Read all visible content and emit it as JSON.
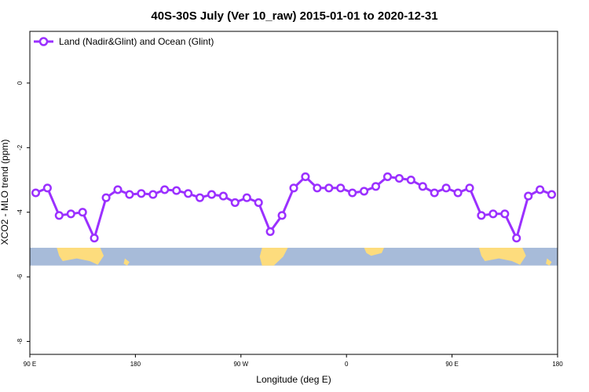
{
  "chart_data": {
    "type": "line",
    "title": "40S-30S July (Ver 10_raw)   2015-01-01 to 2020-12-31",
    "xlabel": "Longitude (deg E)",
    "ylabel": "XCO2 - MLO trend (ppm)",
    "xlim": [
      90,
      540
    ],
    "ylim": [
      -8.4,
      1.6
    ],
    "x_ticks": [
      {
        "value": 90,
        "label": "90 E"
      },
      {
        "value": 180,
        "label": "180"
      },
      {
        "value": 270,
        "label": "90 W"
      },
      {
        "value": 360,
        "label": "0"
      },
      {
        "value": 450,
        "label": "90 E"
      },
      {
        "value": 540,
        "label": "180"
      }
    ],
    "y_ticks": [
      {
        "value": 0,
        "label": "0"
      },
      {
        "value": -2,
        "label": "-2"
      },
      {
        "value": -4,
        "label": "-4"
      },
      {
        "value": -6,
        "label": "-6"
      },
      {
        "value": -8,
        "label": "-8"
      }
    ],
    "grid": false,
    "legend_position": "top-left",
    "series": [
      {
        "name": "Land (Nadir&Glint) and Ocean (Glint)",
        "color": "#9b30ff",
        "x": [
          95,
          105,
          115,
          125,
          135,
          145,
          155,
          165,
          175,
          185,
          195,
          205,
          215,
          225,
          235,
          245,
          255,
          265,
          275,
          285,
          295,
          305,
          315,
          325,
          335,
          345,
          355,
          365,
          375,
          385,
          395,
          405,
          415,
          425,
          435,
          445,
          455,
          465,
          475,
          485,
          495,
          505,
          515,
          525,
          535
        ],
        "y": [
          -3.4,
          -3.25,
          -4.1,
          -4.05,
          -4.0,
          -4.8,
          -3.55,
          -3.3,
          -3.45,
          -3.42,
          -3.45,
          -3.3,
          -3.33,
          -3.42,
          -3.55,
          -3.45,
          -3.5,
          -3.7,
          -3.55,
          -3.7,
          -4.6,
          -4.1,
          -3.25,
          -2.9,
          -3.25,
          -3.25,
          -3.25,
          -3.4,
          -3.35,
          -3.2,
          -2.9,
          -2.95,
          -3.0,
          -3.2,
          -3.4,
          -3.25,
          -3.4,
          -3.25,
          -4.1,
          -4.05,
          -4.05,
          -4.8,
          -3.5,
          -3.3,
          -3.45
        ]
      }
    ],
    "map_band": {
      "y_range": [
        -5.65,
        -5.1
      ],
      "ocean_color": "#a7bbd9",
      "land_color": "#fddc7d"
    }
  }
}
